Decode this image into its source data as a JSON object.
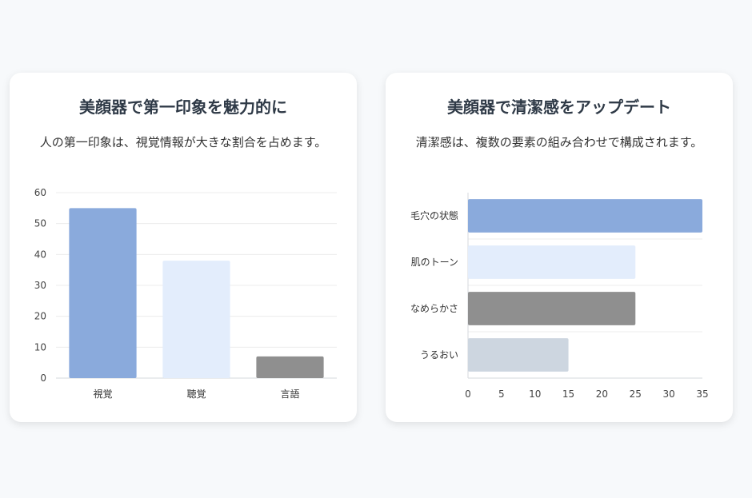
{
  "cards": [
    {
      "title": "美顔器で第一印象を魅力的に",
      "description": "人の第一印象は、視覚情報が大きな割合を占めます。"
    },
    {
      "title": "美顔器で清潔感をアップデート",
      "description": "清潔感は、複数の要素の組み合わせで構成されます。"
    }
  ],
  "chart_data": [
    {
      "type": "bar",
      "orientation": "vertical",
      "categories": [
        "視覚",
        "聴覚",
        "言語"
      ],
      "values": [
        55,
        38,
        7
      ],
      "colors": [
        "#8aaadc",
        "#e3edfc",
        "#8f8f8f"
      ],
      "ylim": [
        0,
        60
      ],
      "yticks": [
        0,
        10,
        20,
        30,
        40,
        50,
        60
      ],
      "grid": true,
      "legend": "none"
    },
    {
      "type": "bar",
      "orientation": "horizontal",
      "categories": [
        "毛穴の状態",
        "肌のトーン",
        "なめらかさ",
        "うるおい"
      ],
      "values": [
        35,
        25,
        25,
        15
      ],
      "colors": [
        "#8aaadc",
        "#e3edfc",
        "#8f8f8f",
        "#cdd6e0"
      ],
      "xlim": [
        0,
        35
      ],
      "xticks": [
        0,
        5,
        10,
        15,
        20,
        25,
        30,
        35
      ],
      "grid": true,
      "legend": "none"
    }
  ]
}
